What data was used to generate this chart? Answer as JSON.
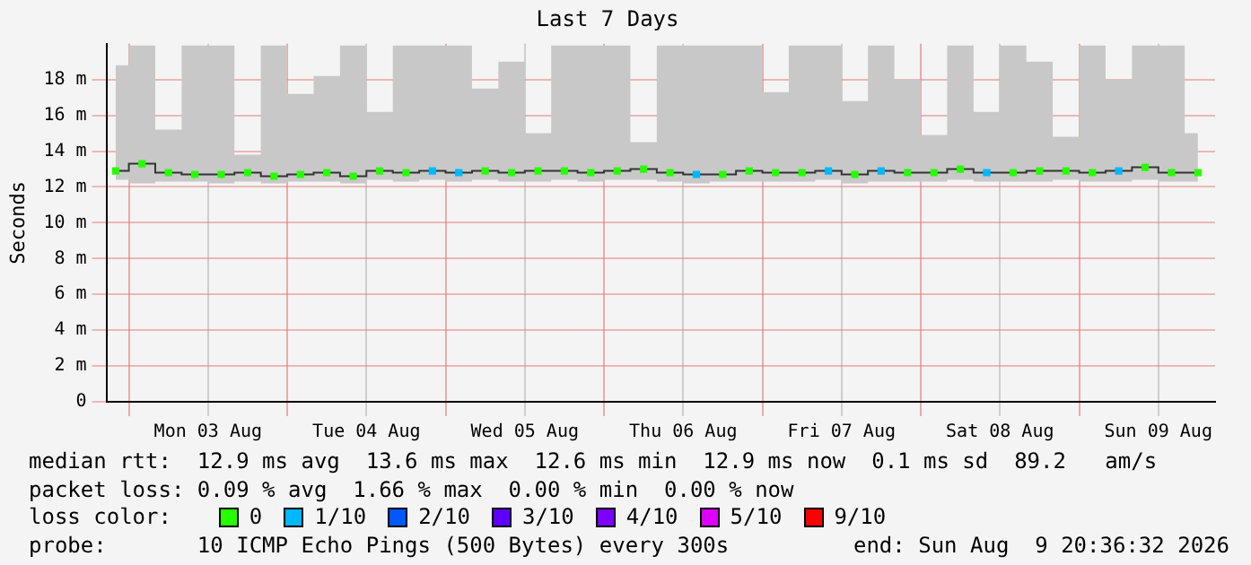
{
  "chart_data": {
    "type": "step",
    "title": "Last 7 Days",
    "ylabel": "Seconds",
    "x": [
      "2026-08-02T22:00",
      "2026-08-03T02:00",
      "2026-08-03T06:00",
      "2026-08-03T10:00",
      "2026-08-03T14:00",
      "2026-08-03T18:00",
      "2026-08-03T22:00",
      "2026-08-04T02:00",
      "2026-08-04T06:00",
      "2026-08-04T10:00",
      "2026-08-04T14:00",
      "2026-08-04T18:00",
      "2026-08-04T22:00",
      "2026-08-05T02:00",
      "2026-08-05T06:00",
      "2026-08-05T10:00",
      "2026-08-05T14:00",
      "2026-08-05T18:00",
      "2026-08-05T22:00",
      "2026-08-06T02:00",
      "2026-08-06T06:00",
      "2026-08-06T10:00",
      "2026-08-06T14:00",
      "2026-08-06T18:00",
      "2026-08-06T22:00",
      "2026-08-07T02:00",
      "2026-08-07T06:00",
      "2026-08-07T10:00",
      "2026-08-07T14:00",
      "2026-08-07T18:00",
      "2026-08-07T22:00",
      "2026-08-08T02:00",
      "2026-08-08T06:00",
      "2026-08-08T10:00",
      "2026-08-08T14:00",
      "2026-08-08T18:00",
      "2026-08-08T22:00",
      "2026-08-09T02:00",
      "2026-08-09T06:00",
      "2026-08-09T10:00",
      "2026-08-09T14:00",
      "2026-08-09T18:00"
    ],
    "xlim": [
      "2026-08-02T20:36",
      "2026-08-09T20:36"
    ],
    "xticks": [
      {
        "value": "2026-08-03T00:00",
        "label": null
      },
      {
        "value": "2026-08-03T12:00",
        "label": "Mon 03 Aug"
      },
      {
        "value": "2026-08-04T00:00",
        "label": null
      },
      {
        "value": "2026-08-04T12:00",
        "label": "Tue 04 Aug"
      },
      {
        "value": "2026-08-05T00:00",
        "label": null
      },
      {
        "value": "2026-08-05T12:00",
        "label": "Wed 05 Aug"
      },
      {
        "value": "2026-08-06T00:00",
        "label": null
      },
      {
        "value": "2026-08-06T12:00",
        "label": "Thu 06 Aug"
      },
      {
        "value": "2026-08-07T00:00",
        "label": null
      },
      {
        "value": "2026-08-07T12:00",
        "label": "Fri 07 Aug"
      },
      {
        "value": "2026-08-08T00:00",
        "label": null
      },
      {
        "value": "2026-08-08T12:00",
        "label": "Sat 08 Aug"
      },
      {
        "value": "2026-08-09T00:00",
        "label": null
      },
      {
        "value": "2026-08-09T12:00",
        "label": "Sun 09 Aug"
      }
    ],
    "ylim": [
      0,
      20
    ],
    "yticks": [
      0,
      {
        "value": 2,
        "label": "2 m"
      },
      {
        "value": 4,
        "label": "4 m"
      },
      {
        "value": 6,
        "label": "6 m"
      },
      {
        "value": 8,
        "label": "8 m"
      },
      {
        "value": 10,
        "label": "10 m"
      },
      {
        "value": 12,
        "label": "12 m"
      },
      {
        "value": 14,
        "label": "14 m"
      },
      {
        "value": 16,
        "label": "16 m"
      },
      {
        "value": 18,
        "label": "18 m"
      }
    ],
    "grid": true,
    "legend": "bottom",
    "legend_title": "loss color:",
    "series": [
      {
        "color": "#333333",
        "values": [
          12.9,
          13.3,
          12.8,
          12.7,
          12.7,
          12.8,
          12.6,
          12.7,
          12.8,
          12.6,
          12.9,
          12.8,
          12.9,
          12.8,
          12.9,
          12.8,
          12.9,
          12.9,
          12.8,
          12.9,
          13.0,
          12.8,
          12.7,
          12.7,
          12.9,
          12.8,
          12.8,
          12.9,
          12.7,
          12.9,
          12.8,
          12.8,
          13.0,
          12.8,
          12.8,
          12.9,
          12.9,
          12.8,
          12.9,
          13.1,
          12.8,
          12.8
        ],
        "lower": [
          12.4,
          12.2,
          12.3,
          12.3,
          12.2,
          12.3,
          12.2,
          12.3,
          12.3,
          12.2,
          12.4,
          12.3,
          12.4,
          12.3,
          12.4,
          12.3,
          12.3,
          12.4,
          12.3,
          12.4,
          12.4,
          12.3,
          12.2,
          12.3,
          12.3,
          12.3,
          12.3,
          12.4,
          12.2,
          12.3,
          12.3,
          12.3,
          12.4,
          12.3,
          12.3,
          12.3,
          12.4,
          12.3,
          12.3,
          12.4,
          12.3,
          12.3
        ],
        "upper": [
          18.8,
          19.9,
          15.2,
          19.9,
          19.9,
          13.8,
          19.9,
          17.2,
          18.2,
          19.9,
          16.2,
          19.9,
          19.9,
          19.9,
          17.5,
          19.0,
          15.0,
          19.9,
          19.9,
          19.9,
          14.5,
          19.9,
          19.9,
          19.9,
          19.9,
          17.3,
          19.9,
          19.9,
          16.8,
          19.9,
          18.0,
          14.9,
          19.9,
          16.2,
          19.9,
          19.0,
          14.8,
          19.9,
          18.0,
          19.9,
          19.9,
          15.0
        ]
      },
      {
        "type": "scatter",
        "name": "0",
        "color": "#26ff00",
        "marker": "square",
        "values": [
          12.9,
          13.3,
          12.8,
          12.7,
          12.7,
          12.8,
          12.6,
          12.7,
          12.8,
          12.6,
          12.9,
          12.8,
          null,
          null,
          12.9,
          12.8,
          12.9,
          12.9,
          12.8,
          12.9,
          13.0,
          12.8,
          null,
          12.7,
          12.9,
          12.8,
          12.8,
          null,
          12.7,
          null,
          12.8,
          12.8,
          13.0,
          null,
          12.8,
          12.9,
          12.9,
          12.8,
          null,
          13.1,
          12.8,
          12.8
        ]
      },
      {
        "type": "scatter",
        "name": "1/10",
        "color": "#00b8ff",
        "marker": "square",
        "values": [
          null,
          null,
          null,
          null,
          null,
          null,
          null,
          null,
          null,
          null,
          null,
          null,
          12.9,
          12.8,
          null,
          null,
          null,
          null,
          null,
          null,
          null,
          null,
          12.7,
          null,
          null,
          null,
          null,
          12.9,
          null,
          12.9,
          null,
          null,
          null,
          12.8,
          null,
          null,
          null,
          null,
          12.9,
          null,
          null,
          null
        ]
      },
      {
        "type": "scatter",
        "name": "2/10",
        "color": "#0059ff",
        "marker": "square",
        "values": [
          null,
          null,
          null,
          null,
          null,
          null,
          null,
          null,
          null,
          null,
          null,
          null,
          null,
          null,
          null,
          null,
          null,
          null,
          null,
          null,
          null,
          null,
          null,
          null,
          null,
          null,
          null,
          null,
          null,
          null,
          null,
          null,
          null,
          null,
          null,
          null,
          null,
          null,
          null,
          null,
          null,
          null
        ]
      },
      {
        "type": "scatter",
        "name": "3/10",
        "color": "#5e00ff",
        "marker": "square",
        "values": [
          null,
          null,
          null,
          null,
          null,
          null,
          null,
          null,
          null,
          null,
          null,
          null,
          null,
          null,
          null,
          null,
          null,
          null,
          null,
          null,
          null,
          null,
          null,
          null,
          null,
          null,
          null,
          null,
          null,
          null,
          null,
          null,
          null,
          null,
          null,
          null,
          null,
          null,
          null,
          null,
          null,
          null
        ]
      },
      {
        "type": "scatter",
        "name": "4/10",
        "color": "#7e00ff",
        "marker": "square",
        "values": [
          null,
          null,
          null,
          null,
          null,
          null,
          null,
          null,
          null,
          null,
          null,
          null,
          null,
          null,
          null,
          null,
          null,
          null,
          null,
          null,
          null,
          null,
          null,
          null,
          null,
          null,
          null,
          null,
          null,
          null,
          null,
          null,
          null,
          null,
          null,
          null,
          null,
          null,
          null,
          null,
          null,
          null
        ]
      },
      {
        "type": "scatter",
        "name": "5/10",
        "color": "#dd00ff",
        "marker": "square",
        "values": [
          null,
          null,
          null,
          null,
          null,
          null,
          null,
          null,
          null,
          null,
          null,
          null,
          null,
          null,
          null,
          null,
          null,
          null,
          null,
          null,
          null,
          null,
          null,
          null,
          null,
          null,
          null,
          null,
          null,
          null,
          null,
          null,
          null,
          null,
          null,
          null,
          null,
          null,
          null,
          null,
          null,
          null
        ]
      },
      {
        "type": "scatter",
        "name": "9/10",
        "color": "#ff0000",
        "marker": "square",
        "values": [
          null,
          null,
          null,
          null,
          null,
          null,
          null,
          null,
          null,
          null,
          null,
          null,
          null,
          null,
          null,
          null,
          null,
          null,
          null,
          null,
          null,
          null,
          null,
          null,
          null,
          null,
          null,
          null,
          null,
          null,
          null,
          null,
          null,
          null,
          null,
          null,
          null,
          null,
          null,
          null,
          null,
          null
        ]
      }
    ],
    "annotations": [
      "median rtt:  12.9 ms avg  13.6 ms max  12.6 ms min  12.9 ms now  0.1 ms sd  89.2   am/s",
      "packet loss: 0.09 % avg  1.66 % max  0.00 % min  0.00 % now",
      "probe:       10 ICMP Echo Pings (500 Bytes) every 300s",
      "end: Sun Aug  9 20:36:32 2026"
    ]
  }
}
